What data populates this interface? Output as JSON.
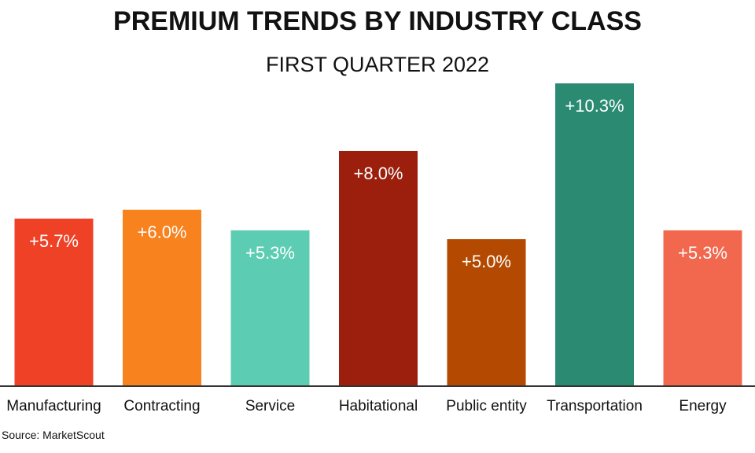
{
  "chart_data": {
    "type": "bar",
    "title": "PREMIUM TRENDS BY INDUSTRY CLASS",
    "subtitle": "FIRST QUARTER 2022",
    "categories": [
      "Manufacturing",
      "Contracting",
      "Service",
      "Habitational",
      "Public entity",
      "Transportation",
      "Energy"
    ],
    "values": [
      5.7,
      6.0,
      5.3,
      8.0,
      5.0,
      10.3,
      5.3
    ],
    "value_labels": [
      "+5.7%",
      "+6.0%",
      "+5.3%",
      "+8.0%",
      "+5.0%",
      "+10.3%",
      "+5.3%"
    ],
    "colors": [
      "#ee4126",
      "#f7821e",
      "#5ccdb2",
      "#9b1f0c",
      "#b44a02",
      "#2a8a72",
      "#f1684f"
    ],
    "ylim": [
      0,
      10.3
    ],
    "grid": false,
    "legend": "none"
  },
  "source": "Source: MarketScout"
}
